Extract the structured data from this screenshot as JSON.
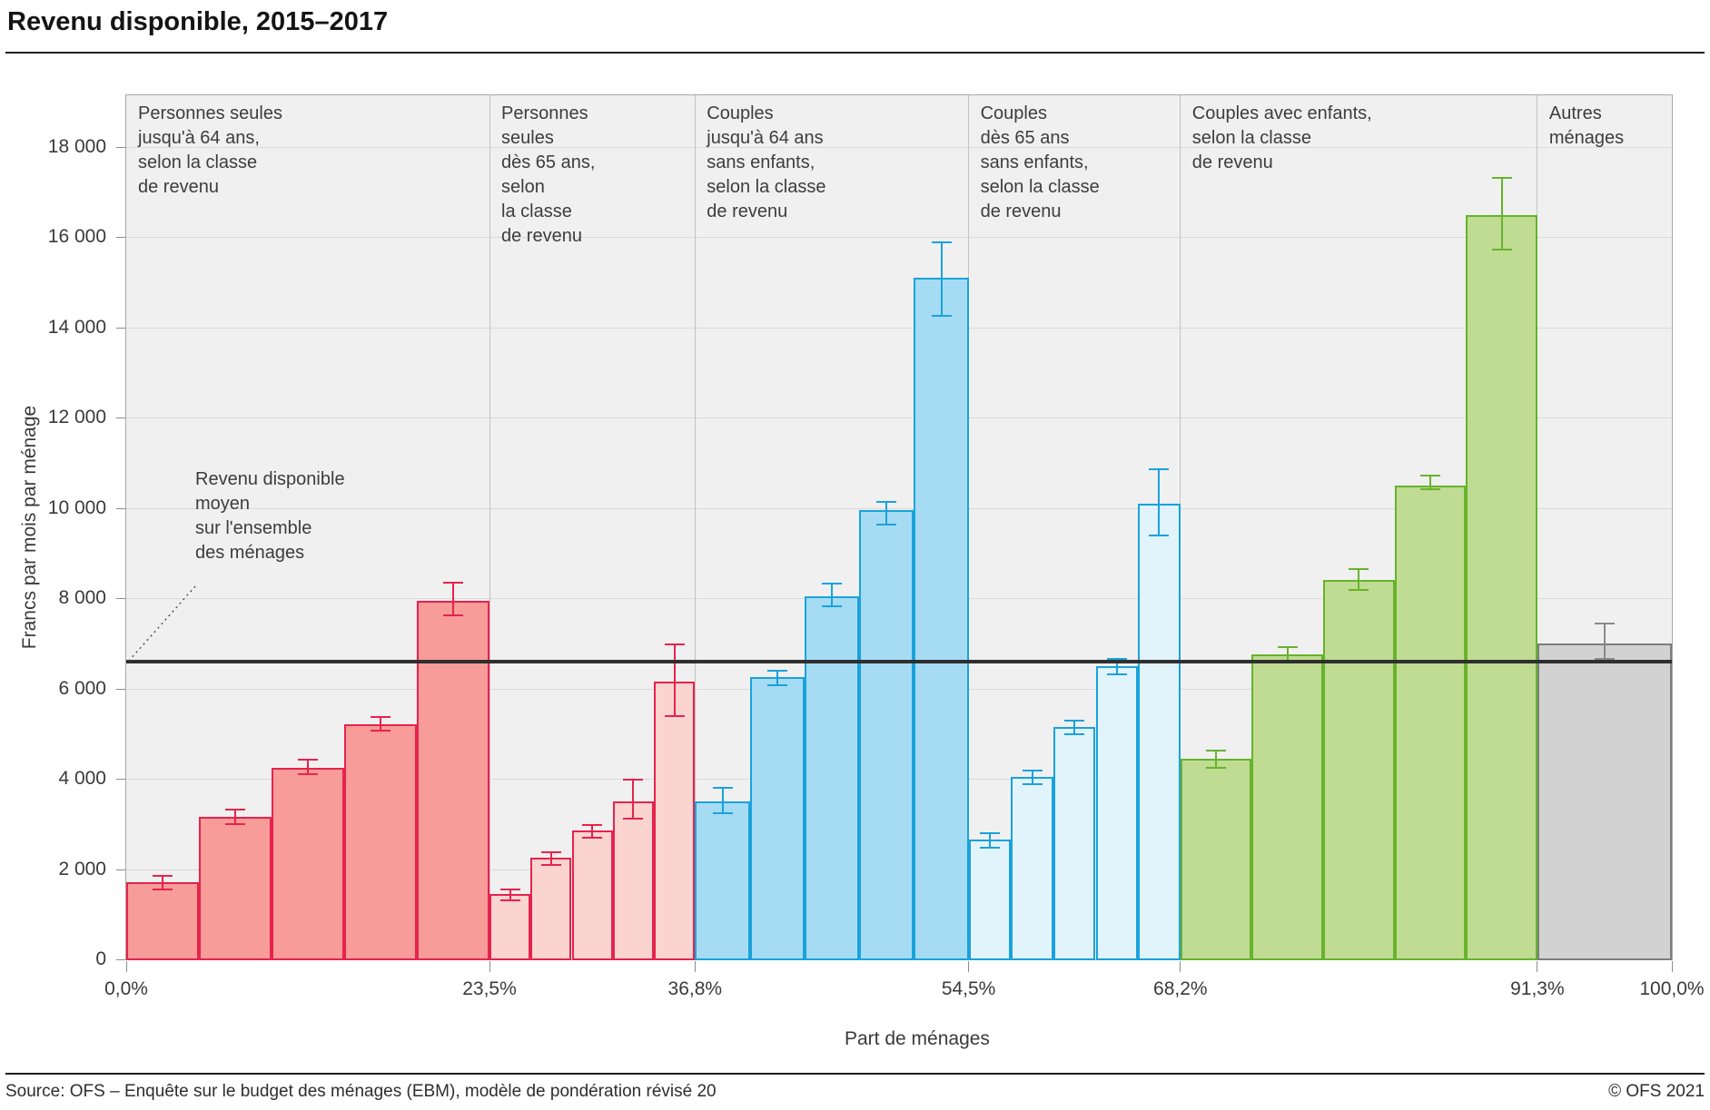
{
  "header": {
    "title": "Revenu disponible, 2015–2017"
  },
  "footer": {
    "source": "Source: OFS – Enquête sur le budget des ménages (EBM), modèle de pondération révisé 20",
    "copyright": "© OFS 2021"
  },
  "chart_data": {
    "type": "bar",
    "title": "Revenu disponible, 2015–2017",
    "xlabel": "Part de ménages",
    "ylabel": "Francs par mois par ménage",
    "ylim": [
      0,
      19150
    ],
    "grid": "horizontal",
    "background": "#f0f0f0",
    "plot_border_color": "#a9a9a9",
    "gridline_color": "#dadada",
    "divider_color": "#c2c2c2",
    "tick_color": "#8c8c8c",
    "mean_line": {
      "value": 6600,
      "color": "#2f2f2f",
      "label": "Revenu disponible\nmoyen\nsur l'ensemble\ndes ménages"
    },
    "y_ticks": [
      {
        "label": "0",
        "value": 0
      },
      {
        "label": "2 000",
        "value": 2000
      },
      {
        "label": "4 000",
        "value": 4000
      },
      {
        "label": "6 000",
        "value": 6000
      },
      {
        "label": "8 000",
        "value": 8000
      },
      {
        "label": "10 000",
        "value": 10000
      },
      {
        "label": "12 000",
        "value": 12000
      },
      {
        "label": "14 000",
        "value": 14000
      },
      {
        "label": "16 000",
        "value": 16000
      },
      {
        "label": "18 000",
        "value": 18000
      }
    ],
    "x_ticks": [
      {
        "label": "0,0%",
        "pct": 0
      },
      {
        "label": "23,5%",
        "pct": 23.5
      },
      {
        "label": "36,8%",
        "pct": 36.8
      },
      {
        "label": "54,5%",
        "pct": 54.5
      },
      {
        "label": "68,2%",
        "pct": 68.2
      },
      {
        "label": "91,3%",
        "pct": 91.3
      },
      {
        "label": "100,0%",
        "pct": 100
      }
    ],
    "groups": [
      {
        "label": "Personnes seules\njusqu'à 64 ans,\nselon la classe\nde revenu",
        "share_start_pct": 0,
        "share_end_pct": 23.5,
        "fill": "#f79c98",
        "stroke": "#e6234d",
        "bars": [
          {
            "value": 1700,
            "ci_low": 1550,
            "ci_high": 1850
          },
          {
            "value": 3150,
            "ci_low": 3000,
            "ci_high": 3310
          },
          {
            "value": 4250,
            "ci_low": 4110,
            "ci_high": 4420
          },
          {
            "value": 5200,
            "ci_low": 5070,
            "ci_high": 5370
          },
          {
            "value": 7950,
            "ci_low": 7610,
            "ci_high": 8340
          }
        ]
      },
      {
        "label": "Personnes\nseules\ndès 65 ans,\nselon\nla classe\nde revenu",
        "share_start_pct": 23.5,
        "share_end_pct": 36.8,
        "fill": "#fbd4d0",
        "stroke": "#e6234d",
        "bars": [
          {
            "value": 1450,
            "ci_low": 1300,
            "ci_high": 1550
          },
          {
            "value": 2250,
            "ci_low": 2090,
            "ci_high": 2370
          },
          {
            "value": 2850,
            "ci_low": 2690,
            "ci_high": 2970
          },
          {
            "value": 3500,
            "ci_low": 3110,
            "ci_high": 3980
          },
          {
            "value": 6150,
            "ci_low": 5390,
            "ci_high": 6980
          }
        ]
      },
      {
        "label": "Couples\njusqu'à 64 ans\nsans enfants,\nselon la classe\nde revenu",
        "share_start_pct": 36.8,
        "share_end_pct": 54.5,
        "fill": "#a6dcf3",
        "stroke": "#1aa2dc",
        "bars": [
          {
            "value": 3500,
            "ci_low": 3230,
            "ci_high": 3800
          },
          {
            "value": 6250,
            "ci_low": 6080,
            "ci_high": 6390
          },
          {
            "value": 8050,
            "ci_low": 7820,
            "ci_high": 8320
          },
          {
            "value": 9950,
            "ci_low": 9630,
            "ci_high": 10130
          },
          {
            "value": 15100,
            "ci_low": 14260,
            "ci_high": 15890
          }
        ]
      },
      {
        "label": "Couples\ndès 65 ans\nsans enfants,\nselon la classe\nde revenu",
        "share_start_pct": 54.5,
        "share_end_pct": 68.2,
        "fill": "#e1f3fb",
        "stroke": "#1aa2dc",
        "bars": [
          {
            "value": 2650,
            "ci_low": 2470,
            "ci_high": 2790
          },
          {
            "value": 4050,
            "ci_low": 3880,
            "ci_high": 4180
          },
          {
            "value": 5150,
            "ci_low": 4980,
            "ci_high": 5290
          },
          {
            "value": 6500,
            "ci_low": 6320,
            "ci_high": 6650
          },
          {
            "value": 10100,
            "ci_low": 9390,
            "ci_high": 10850
          }
        ]
      },
      {
        "label": "Couples avec enfants,\nselon la classe\nde revenu",
        "share_start_pct": 68.2,
        "share_end_pct": 91.3,
        "fill": "#bfdc92",
        "stroke": "#67b32d",
        "bars": [
          {
            "value": 4450,
            "ci_low": 4250,
            "ci_high": 4630
          },
          {
            "value": 6750,
            "ci_low": 6570,
            "ci_high": 6910
          },
          {
            "value": 8400,
            "ci_low": 8190,
            "ci_high": 8640
          },
          {
            "value": 10500,
            "ci_low": 10420,
            "ci_high": 10720
          },
          {
            "value": 16480,
            "ci_low": 15710,
            "ci_high": 17300
          }
        ]
      },
      {
        "label": "Autres\nménages",
        "share_start_pct": 91.3,
        "share_end_pct": 100,
        "fill": "#d2d2d2",
        "stroke": "#7d7d7d",
        "error_color": "#8a8a8a",
        "bars": [
          {
            "value": 7000,
            "ci_low": 6650,
            "ci_high": 7430
          }
        ]
      }
    ]
  }
}
